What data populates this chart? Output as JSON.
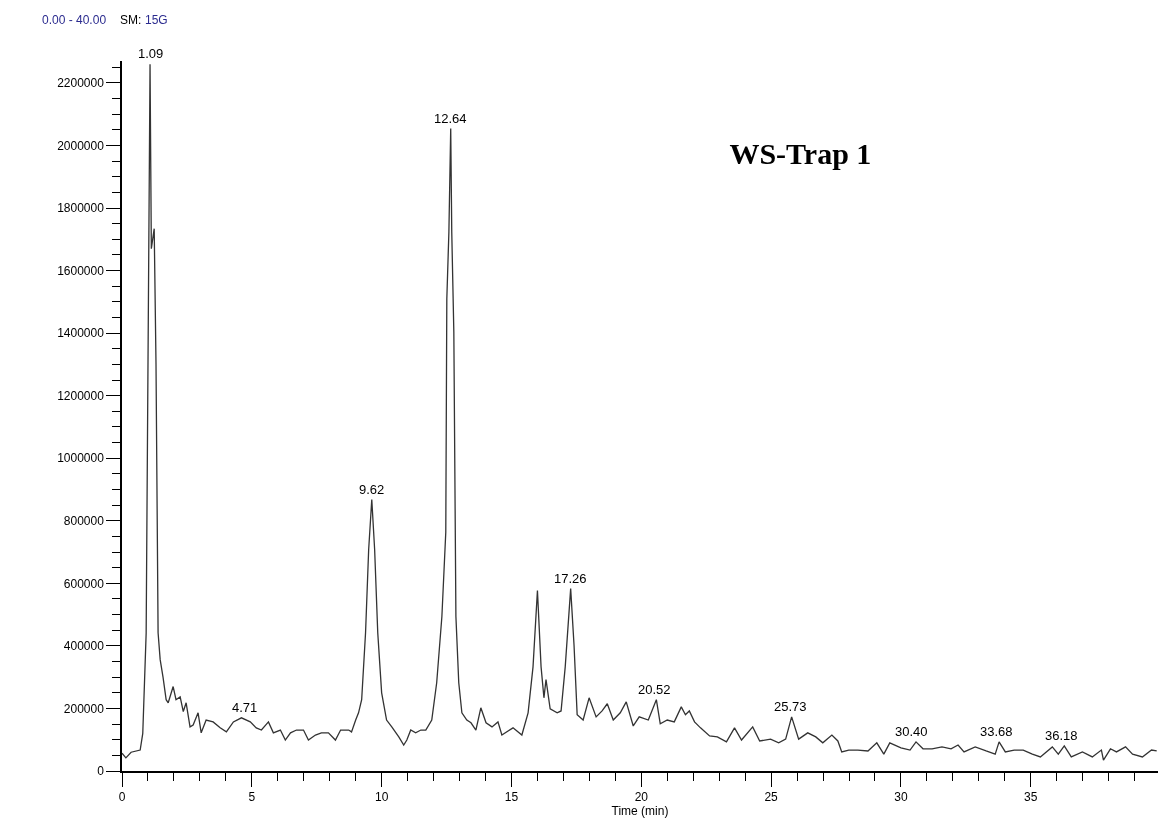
{
  "chart_data": {
    "type": "line",
    "title": "WS-Trap 1",
    "xlabel": "Time (min)",
    "x": [
      0,
      0.15,
      0.35,
      0.7,
      0.8,
      0.93,
      1.08,
      1.13,
      1.24,
      1.31,
      1.39,
      1.47,
      1.58,
      1.7,
      1.78,
      1.97,
      2.08,
      2.24,
      2.36,
      2.47,
      2.62,
      2.74,
      2.93,
      3.05,
      3.24,
      3.51,
      3.78,
      4.02,
      4.29,
      4.6,
      4.94,
      5.17,
      5.37,
      5.64,
      5.83,
      6.1,
      6.29,
      6.49,
      6.72,
      6.99,
      7.18,
      7.45,
      7.68,
      7.95,
      8.22,
      8.42,
      8.73,
      8.84,
      9.0,
      9.11,
      9.23,
      9.38,
      9.5,
      9.62,
      9.73,
      9.85,
      10.0,
      10.19,
      10.39,
      10.66,
      10.85,
      10.97,
      11.12,
      11.31,
      11.51,
      11.7,
      11.93,
      12.12,
      12.32,
      12.47,
      12.51,
      12.59,
      12.66,
      12.7,
      12.78,
      12.86,
      12.97,
      13.09,
      13.28,
      13.44,
      13.63,
      13.82,
      14.02,
      14.25,
      14.48,
      14.63,
      15.06,
      15.4,
      15.64,
      15.83,
      16.0,
      16.14,
      16.25,
      16.33,
      16.49,
      16.76,
      16.91,
      17.07,
      17.28,
      17.41,
      17.53,
      17.76,
      17.99,
      18.26,
      18.49,
      18.69,
      18.92,
      19.19,
      19.42,
      19.69,
      19.92,
      20.27,
      20.58,
      20.73,
      21.0,
      21.27,
      21.54,
      21.7,
      21.85,
      22.05,
      22.28,
      22.63,
      22.93,
      23.28,
      23.59,
      23.86,
      24.29,
      24.56,
      24.98,
      25.29,
      25.56,
      25.79,
      26.06,
      26.41,
      26.72,
      26.99,
      27.34,
      27.57,
      27.72,
      27.99,
      28.34,
      28.73,
      29.07,
      29.34,
      29.57,
      30.0,
      30.35,
      30.58,
      30.85,
      31.2,
      31.58,
      31.93,
      32.2,
      32.43,
      32.86,
      33.28,
      33.63,
      33.78,
      34.02,
      34.36,
      34.71,
      35.06,
      35.37,
      35.83,
      36.06,
      36.29,
      36.56,
      36.99,
      37.37,
      37.72,
      37.8,
      38.07,
      38.3,
      38.65,
      38.92,
      39.3,
      39.65,
      39.85
    ],
    "series": [
      {
        "color": "#333333",
        "values": [
          57000,
          42000,
          60000,
          67000,
          120000,
          440000,
          2260000,
          1670000,
          1734000,
          1300000,
          442000,
          356000,
          300000,
          228000,
          218000,
          270000,
          228000,
          237000,
          190000,
          218000,
          141000,
          147000,
          186000,
          122000,
          163000,
          157000,
          138000,
          125000,
          157000,
          170000,
          157000,
          138000,
          131000,
          157000,
          122000,
          131000,
          99000,
          122000,
          131000,
          131000,
          99000,
          115000,
          122000,
          122000,
          99000,
          131000,
          131000,
          125000,
          163000,
          186000,
          228000,
          442000,
          708000,
          868000,
          708000,
          442000,
          250000,
          163000,
          141000,
          109000,
          83000,
          99000,
          131000,
          122000,
          131000,
          131000,
          163000,
          282000,
          494000,
          763000,
          1510000,
          1724000,
          2054000,
          1724000,
          1404000,
          494000,
          282000,
          186000,
          163000,
          154000,
          131000,
          202000,
          154000,
          141000,
          157000,
          115000,
          138000,
          115000,
          186000,
          333000,
          577000,
          333000,
          234000,
          292000,
          199000,
          186000,
          192000,
          333000,
          583000,
          401000,
          180000,
          163000,
          234000,
          173000,
          192000,
          215000,
          163000,
          186000,
          221000,
          144000,
          173000,
          163000,
          228000,
          151000,
          163000,
          157000,
          205000,
          180000,
          192000,
          157000,
          138000,
          112000,
          109000,
          93000,
          138000,
          99000,
          141000,
          96000,
          102000,
          90000,
          102000,
          173000,
          102000,
          122000,
          109000,
          90000,
          115000,
          96000,
          61000,
          67000,
          67000,
          64000,
          90000,
          54000,
          90000,
          74000,
          67000,
          93000,
          71000,
          71000,
          77000,
          71000,
          83000,
          61000,
          77000,
          64000,
          54000,
          93000,
          61000,
          67000,
          67000,
          54000,
          45000,
          77000,
          54000,
          80000,
          45000,
          61000,
          45000,
          67000,
          35000,
          71000,
          61000,
          77000,
          54000,
          45000,
          67000,
          64000
        ]
      }
    ],
    "xlim": [
      0,
      39.9
    ],
    "xticks": [
      0,
      5,
      10,
      15,
      20,
      25,
      30,
      35
    ],
    "ylim": [
      0,
      2270000
    ],
    "yticks": [
      0,
      200000,
      400000,
      600000,
      800000,
      1000000,
      1200000,
      1400000,
      1600000,
      1800000,
      2000000,
      2200000
    ],
    "marker": "none",
    "line_style": "solid",
    "annotations": [
      "0.00 - 40.00",
      "SM:",
      "15G",
      {
        "text": "1.09",
        "x": 1.09,
        "y": 2260000
      },
      {
        "text": "4.71",
        "x": 4.71,
        "y": 170000
      },
      {
        "text": "9.62",
        "x": 9.62,
        "y": 868000
      },
      {
        "text": "12.64",
        "x": 12.64,
        "y": 2054000
      },
      {
        "text": "17.26",
        "x": 17.26,
        "y": 583000
      },
      {
        "text": "20.52",
        "x": 20.52,
        "y": 228000
      },
      {
        "text": "25.73",
        "x": 25.73,
        "y": 173000
      },
      {
        "text": "30.40",
        "x": 30.4,
        "y": 93000
      },
      {
        "text": "33.68",
        "x": 33.68,
        "y": 93000
      },
      {
        "text": "36.18",
        "x": 36.18,
        "y": 80000
      }
    ]
  }
}
